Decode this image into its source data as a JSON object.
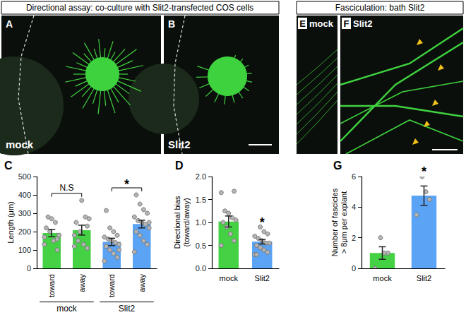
{
  "image_panels": [
    {
      "group": "Directional assay: co-culture with Slit2-transfected COS cells",
      "panels": [
        {
          "letter": "A",
          "label": "mock"
        },
        {
          "letter": "B",
          "label": "Slit2"
        }
      ]
    },
    {
      "group": "Fasciculation: bath Slit2",
      "panels": [
        {
          "letter": "E",
          "label": "mock"
        },
        {
          "letter": "F",
          "label": "Slit2"
        }
      ]
    }
  ],
  "chart_data": [
    {
      "type": "bar",
      "panel_label": "C",
      "y_label": "Length (μm)",
      "categories": [
        "toward",
        "away",
        "toward",
        "away"
      ],
      "group_labels": [
        "mock",
        "Slit2"
      ],
      "values": [
        192,
        208,
        144,
        241
      ],
      "errors": [
        20,
        27,
        20,
        21
      ],
      "colors": [
        "#44d144",
        "#44d144",
        "#5ba3f5",
        "#5ba3f5"
      ],
      "points": [
        [
          130,
          100,
          150,
          200,
          220,
          180,
          250,
          270,
          280,
          170,
          160
        ],
        [
          120,
          110,
          130,
          200,
          250,
          270,
          280,
          370,
          150,
          180,
          230
        ],
        [
          40,
          60,
          80,
          100,
          120,
          130,
          140,
          150,
          160,
          170,
          180,
          200,
          220,
          315,
          100
        ],
        [
          90,
          130,
          150,
          180,
          200,
          220,
          240,
          250,
          260,
          280,
          300,
          320,
          350,
          400,
          250
        ]
      ],
      "annotations": [
        {
          "text": "N.S",
          "categories": [
            0,
            1
          ]
        },
        {
          "text": "*",
          "categories": [
            2,
            3
          ]
        }
      ],
      "ylim": [
        0,
        500
      ],
      "yticks": [
        0,
        100,
        200,
        300,
        400,
        500
      ],
      "grid": false
    },
    {
      "type": "bar",
      "panel_label": "D",
      "y_label": "Directional bias (toward/away)",
      "categories": [
        "mock",
        "Slit2"
      ],
      "values": [
        1.02,
        0.58
      ],
      "errors": [
        0.12,
        0.05
      ],
      "colors": [
        "#44d144",
        "#5ba3f5"
      ],
      "points": [
        [
          0.5,
          0.6,
          0.75,
          0.9,
          1.0,
          1.05,
          1.1,
          1.2,
          1.25,
          1.65,
          1.68
        ],
        [
          0.3,
          0.35,
          0.4,
          0.45,
          0.5,
          0.55,
          0.55,
          0.6,
          0.65,
          0.7,
          0.75,
          0.8,
          0.9,
          0.3
        ]
      ],
      "annotations": [
        {
          "text": "*",
          "categories": [
            1
          ]
        }
      ],
      "ylim": [
        0,
        2
      ],
      "yticks": [
        {
          "value": 0,
          "label": "0.0"
        },
        {
          "value": 0.5,
          "label": "0.5"
        },
        {
          "value": 1,
          "label": "1.0"
        },
        {
          "value": 1.5,
          "label": "1.5"
        },
        {
          "value": 2,
          "label": "2.0"
        }
      ],
      "grid": false
    },
    {
      "type": "bar",
      "panel_label": "G",
      "y_label": "Number of fascicles > 8μm per explant",
      "categories": [
        "mock",
        "Slit2"
      ],
      "values": [
        1.0,
        4.75
      ],
      "errors": [
        0.41,
        0.63
      ],
      "colors": [
        "#44d144",
        "#5ba3f5"
      ],
      "points": [
        [
          0,
          1,
          1,
          2
        ],
        [
          3.5,
          4.5,
          5,
          6
        ]
      ],
      "annotations": [
        {
          "text": "*",
          "categories": [
            1
          ]
        }
      ],
      "ylim": [
        0,
        6
      ],
      "yticks": [
        0,
        2,
        4,
        6
      ],
      "grid": false
    }
  ]
}
